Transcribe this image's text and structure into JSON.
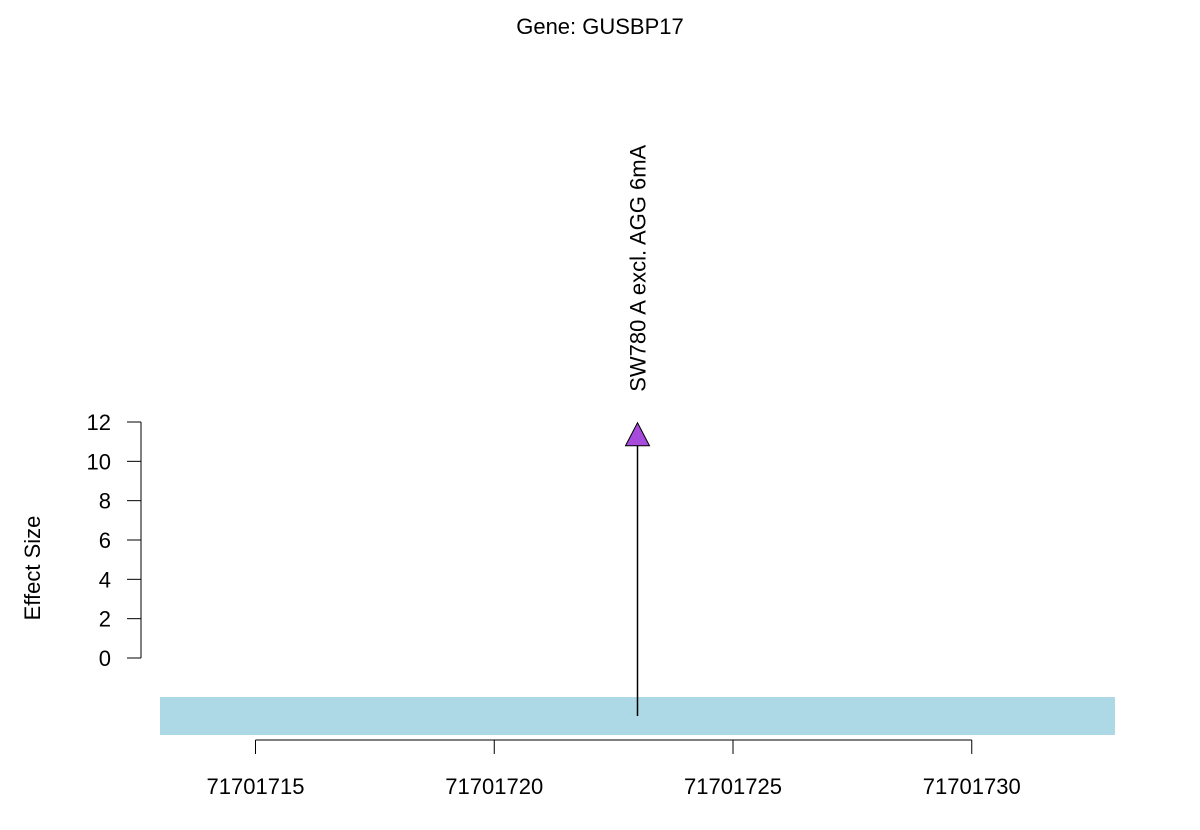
{
  "chart_data": {
    "type": "lollipop",
    "title": "Gene: GUSBP17",
    "ylabel": "Effect Size",
    "xlabel": "",
    "ylim": [
      0,
      12
    ],
    "yticks": [
      0,
      2,
      4,
      6,
      8,
      10,
      12
    ],
    "xlim": [
      71701713,
      71701733
    ],
    "xticks": [
      71701715,
      71701720,
      71701725,
      71701730
    ],
    "gene_region": {
      "start": 71701713,
      "end": 71701733
    },
    "points": [
      {
        "x": 71701723,
        "y": 11.3,
        "label": "SW780 A excl. AGG 6mA",
        "marker": "triangle"
      }
    ],
    "colors": {
      "point_fill": "#a64bdc",
      "gene_bar": "#add8e6",
      "stem": "#000000"
    }
  }
}
